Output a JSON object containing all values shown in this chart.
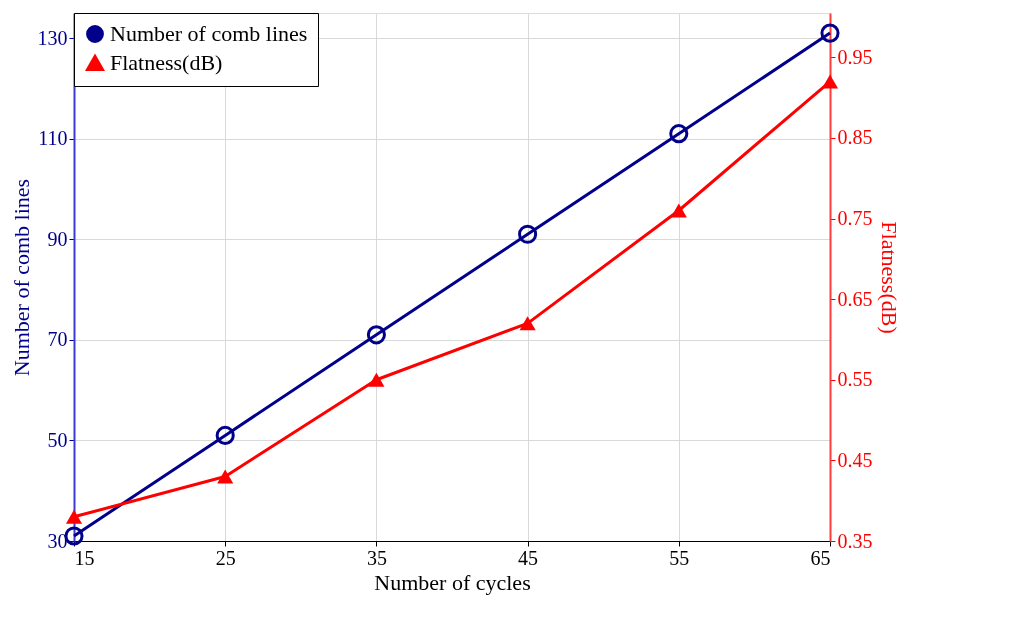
{
  "chart_data": {
    "type": "line",
    "xlabel": "Number of cycles",
    "ylabel": "Number of comb lines",
    "y2label": "Flatness(dB)",
    "x": [
      15,
      25,
      35,
      45,
      55,
      65
    ],
    "series": [
      {
        "name": "Number of comb lines",
        "color": "#00008b",
        "marker": "circle",
        "values": [
          31,
          51,
          71,
          91,
          111,
          131
        ]
      },
      {
        "name": "Flatness(dB)",
        "color": "#ff0000",
        "marker": "triangle",
        "axis": "y2",
        "values": [
          0.38,
          0.43,
          0.55,
          0.62,
          0.76,
          0.92
        ]
      }
    ],
    "xlim": [
      15,
      65
    ],
    "xticks": [
      15,
      25,
      35,
      45,
      55,
      65
    ],
    "ylim": [
      30,
      135
    ],
    "yticks": [
      30,
      50,
      70,
      90,
      110,
      130
    ],
    "y2lim": [
      0.35,
      1.005
    ],
    "y2ticks": [
      0.35,
      0.45,
      0.55,
      0.65,
      0.75,
      0.85,
      0.95
    ],
    "grid": true,
    "legend": "top left",
    "line_style": "solid"
  }
}
